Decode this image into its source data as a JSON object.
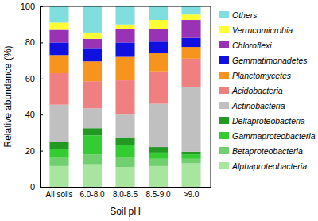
{
  "chart_data": {
    "type": "bar",
    "stacked": true,
    "x_label": "Soil pH",
    "y_label": "Relative abundance (%)",
    "categories": [
      "All soils",
      "6.0-8.0",
      "8.0-8.5",
      "8.5-9.0",
      ">9.0"
    ],
    "ylim": [
      0,
      100
    ],
    "yticks": [
      0,
      20,
      40,
      60,
      80,
      100
    ],
    "legend": "right",
    "series": [
      {
        "name": "Alphaproteobacteria",
        "color": "#a8e6a0",
        "values": [
          11.5,
          12.5,
          11,
          11.5,
          13
        ]
      },
      {
        "name": "Betaproteobacteria",
        "color": "#70d070",
        "values": [
          4.5,
          5.5,
          5.5,
          4,
          2.5
        ]
      },
      {
        "name": "Gammaproteobacteria",
        "color": "#33cc33",
        "values": [
          5,
          10.5,
          6.5,
          3.5,
          2.5
        ]
      },
      {
        "name": "Deltaproteobacteria",
        "color": "#229922",
        "values": [
          4,
          4,
          4.5,
          3,
          1.5
        ]
      },
      {
        "name": "Actinobacteria",
        "color": "#c0c0c0",
        "values": [
          20.5,
          11,
          12.5,
          24,
          36
        ]
      },
      {
        "name": "Acidobacteria",
        "color": "#f08080",
        "values": [
          17.5,
          15,
          19,
          18,
          15.5
        ]
      },
      {
        "name": "Planctomycetes",
        "color": "#f7941d",
        "values": [
          10,
          11,
          13,
          10,
          6.5
        ]
      },
      {
        "name": "Gemmatimonadetes",
        "color": "#1010e0",
        "values": [
          7,
          7,
          8,
          6.5,
          5
        ]
      },
      {
        "name": "Chloroflexi",
        "color": "#9932b4",
        "values": [
          7,
          5.5,
          7.5,
          7,
          10
        ]
      },
      {
        "name": "Verrucomicrobia",
        "color": "#ffff33",
        "values": [
          4,
          3.5,
          2.5,
          5,
          3
        ]
      },
      {
        "name": "Others",
        "color": "#80dede",
        "values": [
          9,
          14.5,
          10,
          7.5,
          4.5
        ]
      }
    ]
  }
}
